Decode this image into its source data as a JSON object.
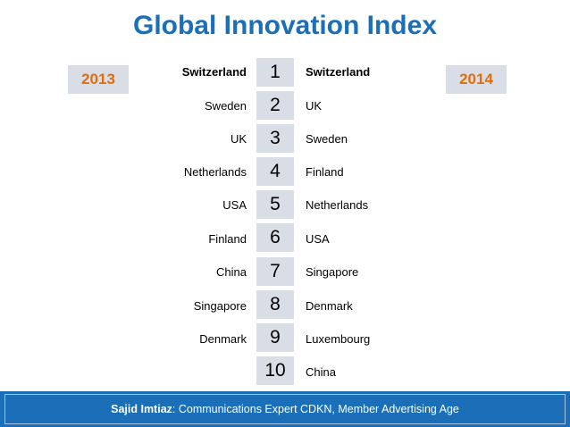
{
  "title": "Global Innovation Index",
  "years": {
    "left": "2013",
    "right": "2014"
  },
  "ranks": [
    "1",
    "2",
    "3",
    "4",
    "5",
    "6",
    "7",
    "8",
    "9",
    "10"
  ],
  "list_2013": [
    "Switzerland",
    "Sweden",
    "UK",
    "Netherlands",
    "USA",
    "Finland",
    "China",
    "Singapore",
    "Denmark",
    ""
  ],
  "list_2014": [
    "Switzerland",
    "UK",
    "Sweden",
    "Finland",
    "Netherlands",
    "USA",
    "Singapore",
    "Denmark",
    "Luxembourg",
    "China"
  ],
  "footer": {
    "name": "Sajid Imtiaz",
    "description": ": Communications Expert CDKN, Member Advertising Age"
  },
  "colors": {
    "title": "#1b6fb8",
    "year_text": "#e46c0a",
    "box_background": "#d9dde6",
    "footer_background": "#1b6fb8"
  }
}
